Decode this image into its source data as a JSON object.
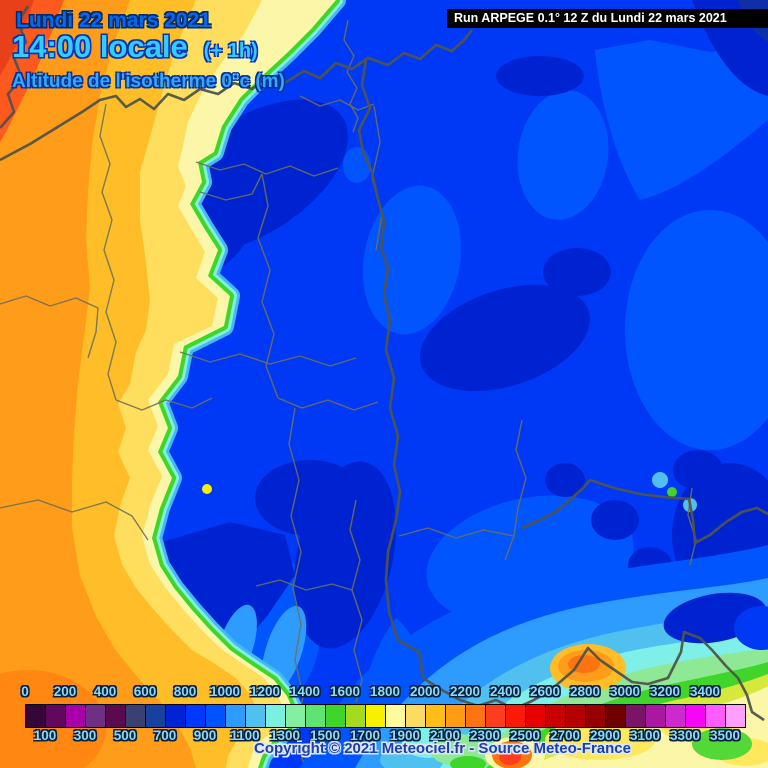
{
  "header": {
    "date_line": "Lundi 22 mars 2021",
    "time_line": "14:00 locale",
    "time_offset": "(+ 1h)",
    "subtitle": "Altitude de l'isotherme 0°c (m)",
    "run_info": "Run ARPEGE 0.1° 12 Z du Lundi 22 mars 2021"
  },
  "footer": {
    "copyright": "Copyright © 2021 Meteociel.fr - Source Meteo-France"
  },
  "legend": {
    "unit": "m",
    "scale_min": 0,
    "scale_max": 3600,
    "step": 100,
    "colors": [
      "#350738",
      "#61085E",
      "#A800A8",
      "#6F2F84",
      "#5C0A50",
      "#3A4070",
      "#16429E",
      "#0023D6",
      "#0038FF",
      "#0054FF",
      "#2E9BFF",
      "#4FC0F0",
      "#79F0E0",
      "#82F0A0",
      "#5FE371",
      "#3FD52A",
      "#A3DC1C",
      "#F7F000",
      "#FDFB9E",
      "#FBDC62",
      "#FFBE19",
      "#FF9C14",
      "#FF7410",
      "#FF3D1E",
      "#FB1A0A",
      "#E60000",
      "#C80000",
      "#B40000",
      "#960000",
      "#700000",
      "#7A1468",
      "#A818A0",
      "#CC2ACC",
      "#F705F7",
      "#FF5CFF",
      "#FFA0FF"
    ],
    "top_labels": [
      "0",
      "200",
      "400",
      "600",
      "800",
      "1000",
      "1200",
      "1400",
      "1600",
      "1800",
      "2000",
      "2200",
      "2400",
      "2600",
      "2800",
      "3000",
      "3200",
      "3400"
    ],
    "bottom_labels": [
      "100",
      "300",
      "500",
      "700",
      "900",
      "1100",
      "1300",
      "1500",
      "1700",
      "1900",
      "2100",
      "2300",
      "2500",
      "2700",
      "2900",
      "3100",
      "3300",
      "3500"
    ]
  },
  "map": {
    "palette": {
      "warm_red": "#FF5A1E",
      "orange": "#FF9C19",
      "amber": "#FFBE28",
      "yellow": "#FFDE5E",
      "pale_yellow": "#FCF6A8",
      "green": "#3FD52A",
      "pale_green": "#8FE896",
      "cyan": "#7FF0E8",
      "sky_blue": "#2E9BFF",
      "light_blue": "#0055FF",
      "main_blue": "#0038FF",
      "dark_blue": "#0023D2",
      "navy": "#0E2FA8"
    }
  }
}
